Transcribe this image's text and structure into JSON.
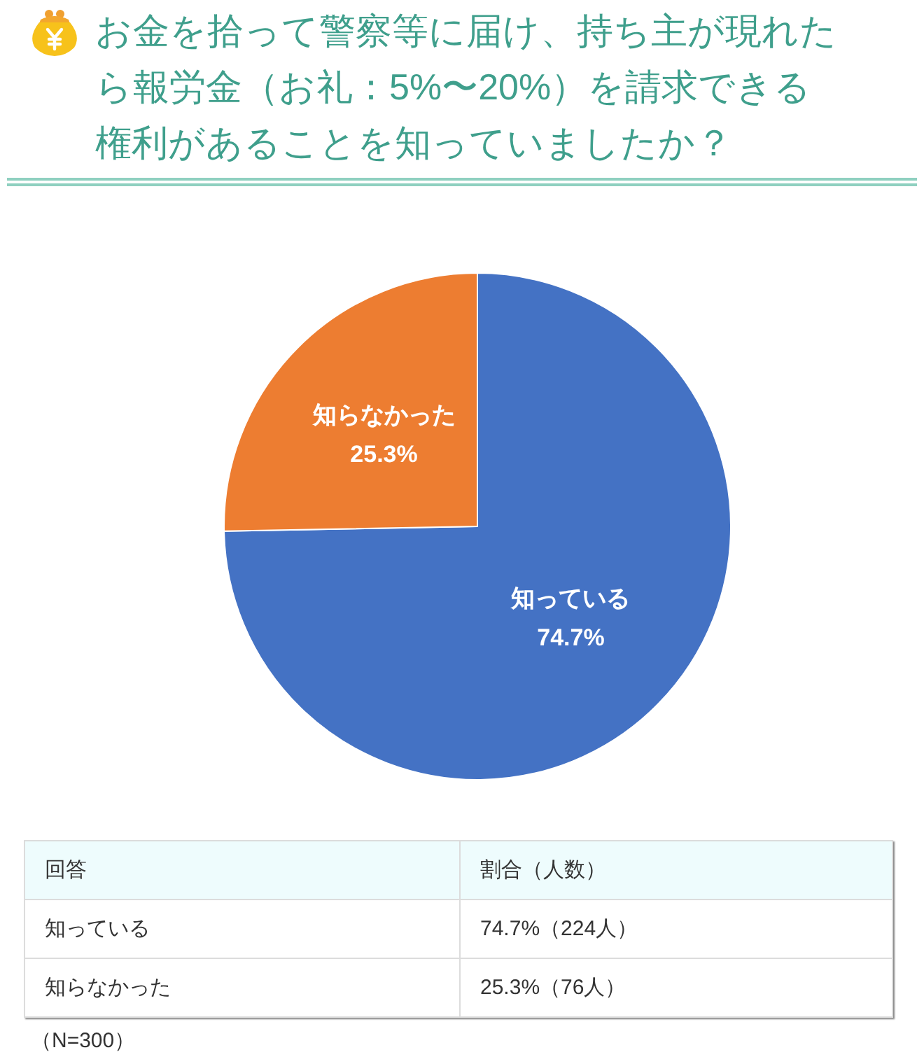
{
  "chart_data": [
    {
      "type": "pie",
      "title": "お金を拾って警察等に届け、持ち主が現れたら報労金（お礼：5%〜20%）を請求できる権利があることを知っていましたか？",
      "categories": [
        "知っている",
        "知らなかった"
      ],
      "values": [
        74.7,
        25.3
      ],
      "colors": [
        "#4472c4",
        "#ed7d31"
      ],
      "value_labels": [
        "74.7%",
        "25.3%"
      ]
    },
    {
      "type": "other",
      "xlabel": "回答",
      "ylabel": "割合（人数）",
      "categories": [
        "知っている",
        "知らなかった"
      ],
      "value_labels": [
        "74.7%（224人）",
        "25.3%（76人）"
      ],
      "annotations": [
        "（N=300）"
      ]
    }
  ]
}
